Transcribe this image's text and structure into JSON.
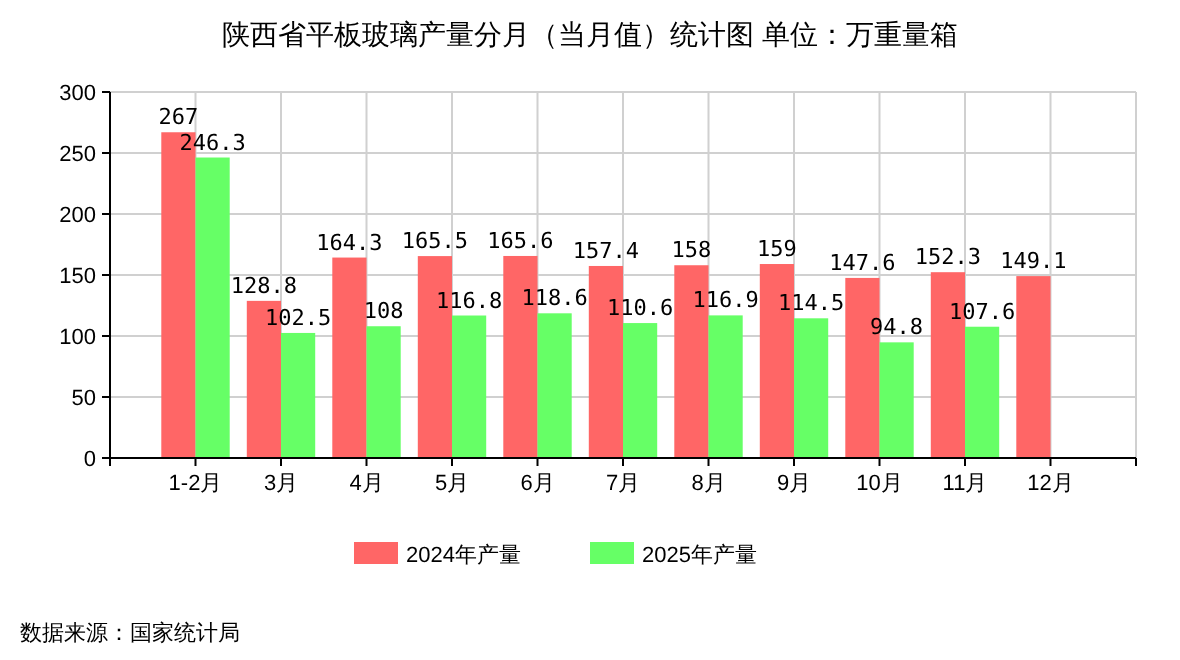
{
  "chart_data": {
    "type": "bar",
    "title": "陕西省平板玻璃产量分月（当月值）统计图 单位：万重量箱",
    "categories": [
      "1-2月",
      "3月",
      "4月",
      "5月",
      "6月",
      "7月",
      "8月",
      "9月",
      "10月",
      "11月",
      "12月"
    ],
    "series": [
      {
        "name": "2024年产量",
        "color": "#ff6666",
        "values": [
          267,
          128.8,
          164.3,
          165.5,
          165.6,
          157.4,
          158,
          159,
          147.6,
          152.3,
          149.1
        ]
      },
      {
        "name": "2025年产量",
        "color": "#66ff66",
        "values": [
          246.3,
          102.5,
          108,
          116.8,
          118.6,
          110.6,
          116.9,
          114.5,
          94.8,
          107.6,
          null
        ]
      }
    ],
    "ylim": [
      0,
      300
    ],
    "yticks": [
      0,
      50,
      100,
      150,
      200,
      250,
      300
    ],
    "grid": true,
    "legend": "bottom",
    "data_labels": true,
    "annotations": [
      "数据来源：国家统计局"
    ]
  }
}
